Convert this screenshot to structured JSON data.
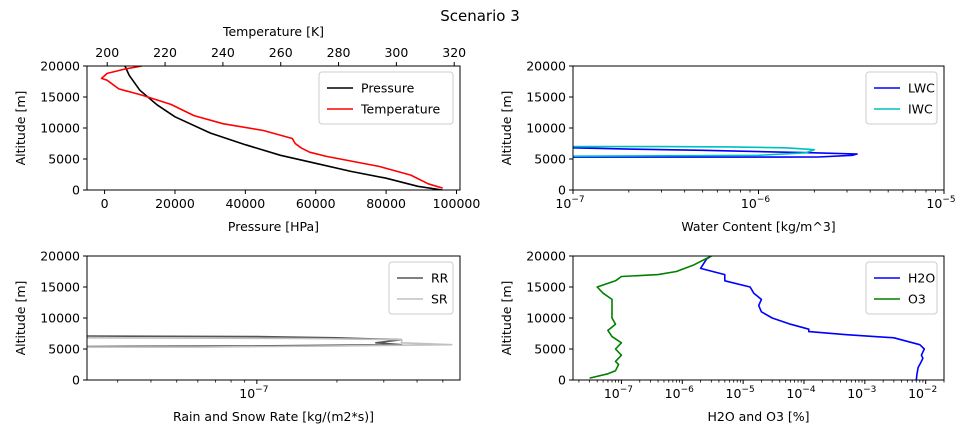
{
  "figure_title": "Scenario 3",
  "chart_data": [
    {
      "id": "p1",
      "type": "line",
      "xlabel": "Pressure [HPa]",
      "ylabel": "Altitude [m]",
      "x2label": "Temperature [K]",
      "xscale": "linear",
      "xlim": [
        -5000,
        101000
      ],
      "x2lim": [
        193,
        322
      ],
      "ylim": [
        0,
        20000
      ],
      "xticks": [
        0,
        20000,
        40000,
        60000,
        80000,
        100000
      ],
      "xtick_labels": [
        "0",
        "20000",
        "40000",
        "60000",
        "80000",
        "100000"
      ],
      "x2ticks": [
        200,
        220,
        240,
        260,
        280,
        300,
        320
      ],
      "x2tick_labels": [
        "200",
        "220",
        "240",
        "260",
        "280",
        "300",
        "320"
      ],
      "yticks": [
        0,
        5000,
        10000,
        15000,
        20000
      ],
      "ytick_labels": [
        "0",
        "5000",
        "10000",
        "15000",
        "20000"
      ],
      "legend_position": "top-right",
      "series": [
        {
          "name": "Pressure",
          "color": "#000000",
          "axis": "bottom",
          "points": [
            [
              96000,
              0
            ],
            [
              89000,
              600
            ],
            [
              80000,
              1900
            ],
            [
              70000,
              3000
            ],
            [
              60000,
              4300
            ],
            [
              50000,
              5600
            ],
            [
              40000,
              7300
            ],
            [
              30000,
              9200
            ],
            [
              20000,
              11800
            ],
            [
              15000,
              13700
            ],
            [
              10000,
              16100
            ],
            [
              7000,
              18500
            ],
            [
              5800,
              20000
            ]
          ]
        },
        {
          "name": "Temperature",
          "color": "#ff0000",
          "axis": "top",
          "points": [
            [
              316,
              300
            ],
            [
              311,
              1000
            ],
            [
              305,
              2400
            ],
            [
              294,
              3800
            ],
            [
              284,
              4700
            ],
            [
              276,
              5400
            ],
            [
              270,
              6100
            ],
            [
              267,
              6800
            ],
            [
              265,
              7500
            ],
            [
              264,
              8300
            ],
            [
              254,
              9600
            ],
            [
              240,
              10700
            ],
            [
              230,
              12000
            ],
            [
              222,
              13800
            ],
            [
              212,
              15300
            ],
            [
              204,
              16300
            ],
            [
              200,
              17700
            ],
            [
              198,
              18000
            ],
            [
              200,
              18800
            ],
            [
              206,
              19500
            ],
            [
              212,
              20000
            ]
          ]
        }
      ]
    },
    {
      "id": "p2",
      "type": "line",
      "xlabel": "Water Content [kg/m^3]",
      "ylabel": "Altitude [m]",
      "xscale": "log",
      "xlim": [
        1e-07,
        1e-05
      ],
      "ylim": [
        0,
        20000
      ],
      "xticks": [
        1e-07,
        1e-06,
        1e-05
      ],
      "xtick_labels": [
        "10",
        "10",
        "10"
      ],
      "xtick_exponents": [
        "−7",
        "−6",
        "−5"
      ],
      "yticks": [
        0,
        5000,
        10000,
        15000,
        20000
      ],
      "ytick_labels": [
        "0",
        "5000",
        "10000",
        "15000",
        "20000"
      ],
      "legend_position": "top-right",
      "series": [
        {
          "name": "LWC",
          "color": "#0000ff",
          "points": [
            [
              1e-07,
              5300
            ],
            [
              1.3e-06,
              5300
            ],
            [
              2.1e-06,
              5320
            ],
            [
              3.2e-06,
              5600
            ],
            [
              3.4e-06,
              5800
            ],
            [
              2e-06,
              6000
            ],
            [
              1e-06,
              6200
            ],
            [
              5e-07,
              6400
            ],
            [
              2e-07,
              6600
            ],
            [
              1e-07,
              6800
            ]
          ]
        },
        {
          "name": "IWC",
          "color": "#00bfbf",
          "points": [
            [
              1e-07,
              5450
            ],
            [
              1e-06,
              5600
            ],
            [
              1.8e-06,
              6000
            ],
            [
              2e-06,
              6500
            ],
            [
              1.4e-06,
              6800
            ],
            [
              7e-07,
              6950
            ],
            [
              3e-07,
              7000
            ],
            [
              1e-07,
              7000
            ]
          ]
        }
      ]
    },
    {
      "id": "p3",
      "type": "line",
      "xlabel": "Rain and Snow Rate [kg/(m2*s)]",
      "ylabel": "Altitude [m]",
      "xscale": "log",
      "xlim": [
        2.3e-08,
        5.8e-07
      ],
      "ylim": [
        0,
        20000
      ],
      "xticks": [
        1e-07
      ],
      "xtick_labels": [
        "10"
      ],
      "xtick_exponents": [
        "−7"
      ],
      "yticks": [
        0,
        5000,
        10000,
        15000,
        20000
      ],
      "ytick_labels": [
        "0",
        "5000",
        "10000",
        "15000",
        "20000"
      ],
      "legend_position": "top-right",
      "series": [
        {
          "name": "RR",
          "color": "#555555",
          "points": [
            [
              2.3e-08,
              7100
            ],
            [
              1e-07,
              7000
            ],
            [
              2e-07,
              6800
            ],
            [
              3.5e-07,
              6500
            ],
            [
              2.8e-07,
              6000
            ],
            [
              3.5e-07,
              5700
            ],
            [
              1e-07,
              5500
            ],
            [
              2.3e-08,
              5400
            ]
          ]
        },
        {
          "name": "SR",
          "color": "#c0c0c0",
          "points": [
            [
              2.3e-08,
              6800
            ],
            [
              1.5e-07,
              6700
            ],
            [
              3.5e-07,
              6500
            ],
            [
              3.5e-07,
              6000
            ],
            [
              5.4e-07,
              5700
            ],
            [
              2e-07,
              5500
            ],
            [
              6e-08,
              5300
            ],
            [
              2.3e-08,
              5300
            ]
          ]
        }
      ]
    },
    {
      "id": "p4",
      "type": "line",
      "xlabel": "H2O and O3 [%]",
      "ylabel": "Altitude [m]",
      "xscale": "log",
      "xlim": [
        1.6e-08,
        0.02
      ],
      "ylim": [
        0,
        20000
      ],
      "xticks": [
        1e-07,
        1e-06,
        1e-05,
        0.0001,
        0.001,
        0.01
      ],
      "xtick_labels": [
        "10",
        "10",
        "10",
        "10",
        "10",
        "10"
      ],
      "xtick_exponents": [
        "−7",
        "−6",
        "−5",
        "−4",
        "−3",
        "−2"
      ],
      "yticks": [
        0,
        5000,
        10000,
        15000,
        20000
      ],
      "ytick_labels": [
        "0",
        "5000",
        "10000",
        "15000",
        "20000"
      ],
      "legend_position": "top-right",
      "series": [
        {
          "name": "H2O",
          "color": "#0000ff",
          "points": [
            [
              0.007,
              0
            ],
            [
              0.0072,
              1000
            ],
            [
              0.0075,
              2000
            ],
            [
              0.0085,
              3000
            ],
            [
              0.009,
              3500
            ],
            [
              0.0085,
              4000
            ],
            [
              0.0095,
              5000
            ],
            [
              0.008,
              5700
            ],
            [
              0.003,
              6800
            ],
            [
              0.0005,
              7300
            ],
            [
              0.00012,
              7800
            ],
            [
              0.00012,
              8200
            ],
            [
              6e-05,
              9000
            ],
            [
              3e-05,
              10000
            ],
            [
              2e-05,
              11000
            ],
            [
              1.8e-05,
              12000
            ],
            [
              2e-05,
              13000
            ],
            [
              1.5e-05,
              14000
            ],
            [
              1.3e-05,
              15000
            ],
            [
              5e-06,
              16000
            ],
            [
              5e-06,
              17000
            ],
            [
              2e-06,
              18000
            ],
            [
              2.5e-06,
              19500
            ],
            [
              3e-06,
              20000
            ]
          ]
        },
        {
          "name": "O3",
          "color": "#008000",
          "points": [
            [
              3e-08,
              300
            ],
            [
              6e-08,
              1000
            ],
            [
              8e-08,
              1500
            ],
            [
              9e-08,
              2500
            ],
            [
              8e-08,
              3000
            ],
            [
              1e-07,
              4000
            ],
            [
              8e-08,
              5000
            ],
            [
              1e-07,
              6000
            ],
            [
              7e-08,
              7000
            ],
            [
              6e-08,
              8000
            ],
            [
              8e-08,
              9000
            ],
            [
              7e-08,
              10000
            ],
            [
              7e-08,
              12000
            ],
            [
              7e-08,
              13000
            ],
            [
              5e-08,
              14000
            ],
            [
              4e-08,
              15000
            ],
            [
              8e-08,
              16000
            ],
            [
              1e-07,
              16700
            ],
            [
              4e-07,
              17000
            ],
            [
              8e-07,
              17500
            ],
            [
              1.5e-06,
              18500
            ],
            [
              3e-06,
              20000
            ]
          ]
        }
      ]
    }
  ]
}
